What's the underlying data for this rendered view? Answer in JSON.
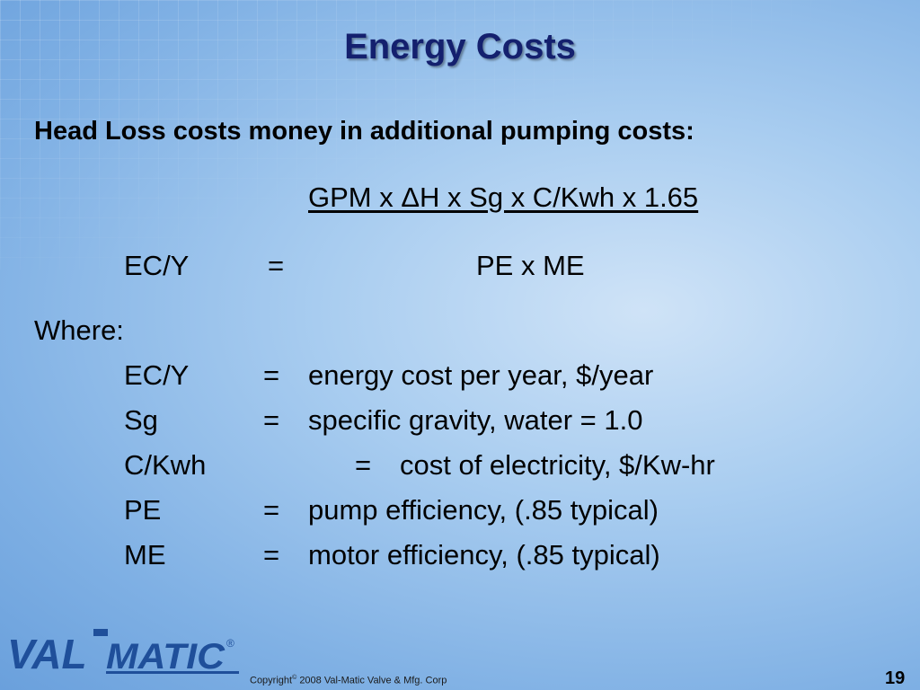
{
  "title": "Energy Costs",
  "subtitle": "Head Loss costs money in additional pumping costs:",
  "formula": {
    "numerator": "GPM x ΔH x Sg x C/Kwh x 1.65",
    "lhs": "EC/Y",
    "equals": "=",
    "denominator": "PE x ME"
  },
  "where_label": "Where:",
  "definitions": [
    {
      "term": "EC/Y",
      "equals": "=",
      "text": "energy cost per year, $/year"
    },
    {
      "term": "Sg",
      "equals": "=",
      "text": "specific gravity, water = 1.0"
    },
    {
      "term": "C/Kwh",
      "equals": "=",
      "text": "cost of electricity, $/Kw-hr"
    },
    {
      "term": "PE",
      "equals": "=",
      "text": "pump efficiency, (.85 typical)"
    },
    {
      "term": "ME",
      "equals": "=",
      "text": "motor efficiency, (.85 typical)"
    }
  ],
  "footer": {
    "logo": {
      "part1": "VAL",
      "part2": "MATIC",
      "mark": "®"
    },
    "copyright": {
      "word": "Copyright",
      "symbol": "©",
      "text": "2008 Val-Matic Valve & Mfg. Corp"
    },
    "page_number": "19"
  }
}
